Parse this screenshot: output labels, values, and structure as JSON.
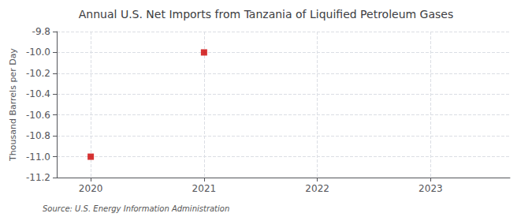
{
  "chart_data": {
    "type": "scatter",
    "title": "Annual U.S. Net Imports from Tanzania of Liquified Petroleum Gases",
    "ylabel": "Thousand Barrels per Day",
    "annotation": "Source: U.S. Energy Information Administration",
    "x": [
      2020,
      2021
    ],
    "values": [
      -11.0,
      -10.0
    ],
    "color": "#cc0000",
    "marker": "square",
    "xlim": [
      2019.7,
      2023.7
    ],
    "ylim": [
      -11.2,
      -9.8
    ],
    "xticks": [
      2020,
      2021,
      2022,
      2023
    ],
    "yticks": [
      -9.8,
      {
        "value": -10.0,
        "label": "-10.0"
      },
      -10.2,
      -10.4,
      -10.6,
      -10.8,
      {
        "value": -11.0,
        "label": "-11.0"
      },
      -11.2
    ],
    "grid": true
  }
}
